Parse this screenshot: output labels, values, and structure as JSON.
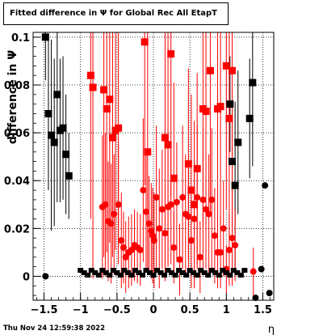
{
  "chart_data": {
    "type": "scatter",
    "title": "Fitted difference in  Ψ  for Global Rec All EtapT",
    "ylabel": "difference in  Ψ",
    "xlabel": "η",
    "xlim": [
      -1.65,
      1.65
    ],
    "ylim": [
      -0.01,
      0.102
    ],
    "x_ticks": [
      -1.5,
      -1,
      -0.5,
      0,
      0.5,
      1,
      1.5
    ],
    "x_tick_labels": [
      "−1.5",
      "−1",
      "−0.5",
      "0",
      "0.5",
      "1",
      "1.5"
    ],
    "y_ticks": [
      0,
      0.02,
      0.04,
      0.06,
      0.08,
      0.1
    ],
    "y_tick_labels": [
      "0",
      "0.02",
      "0.04",
      "0.06",
      "0.08",
      "0.1"
    ],
    "grid": true,
    "series": [
      {
        "color": "#000000",
        "marker": "square",
        "points": [
          {
            "x": -1.48,
            "y": 0.1,
            "err": 0.018
          },
          {
            "x": -1.44,
            "y": 0.068,
            "err": 0.032
          },
          {
            "x": -1.4,
            "y": 0.059,
            "err": 0.04
          },
          {
            "x": -1.36,
            "y": 0.056,
            "err": 0.035
          },
          {
            "x": -1.32,
            "y": 0.076,
            "err": 0.045
          },
          {
            "x": -1.28,
            "y": 0.061,
            "err": 0.03
          },
          {
            "x": -1.24,
            "y": 0.062,
            "err": 0.03
          },
          {
            "x": -1.2,
            "y": 0.051,
            "err": 0.025
          },
          {
            "x": -1.16,
            "y": 0.042,
            "err": 0.018
          },
          {
            "x": 1.05,
            "y": 0.072,
            "err": 0.02
          },
          {
            "x": 1.08,
            "y": 0.048,
            "err": 0.03
          },
          {
            "x": 1.12,
            "y": 0.038,
            "err": 0.035
          },
          {
            "x": 1.16,
            "y": 0.056,
            "err": 0.03
          },
          {
            "x": 1.32,
            "y": 0.066,
            "err": 0.025
          },
          {
            "x": 1.36,
            "y": 0.081,
            "err": 0.035
          }
        ]
      },
      {
        "color": "#000000",
        "marker": "circle",
        "points": [
          {
            "x": -1.48,
            "y": 0.0,
            "err": 0.0
          },
          {
            "x": 1.4,
            "y": -0.009,
            "err": 0.0
          },
          {
            "x": 1.48,
            "y": 0.003,
            "err": 0.0
          },
          {
            "x": 1.53,
            "y": 0.038,
            "err": 0.0
          },
          {
            "x": 1.59,
            "y": -0.007,
            "err": 0.0
          }
        ]
      },
      {
        "color": "#ff0000",
        "marker": "square",
        "points": [
          {
            "x": -0.86,
            "y": 0.084,
            "err": 0.06
          },
          {
            "x": -0.83,
            "y": 0.079,
            "err": 0.08
          },
          {
            "x": -0.68,
            "y": 0.078,
            "err": 0.07
          },
          {
            "x": -0.64,
            "y": 0.07,
            "err": 0.06
          },
          {
            "x": -0.6,
            "y": 0.074,
            "err": 0.06
          },
          {
            "x": -0.56,
            "y": 0.058,
            "err": 0.05
          },
          {
            "x": -0.52,
            "y": 0.061,
            "err": 0.05
          },
          {
            "x": -0.48,
            "y": 0.062,
            "err": 0.05
          },
          {
            "x": -0.12,
            "y": 0.098,
            "err": 0.06
          },
          {
            "x": -0.08,
            "y": 0.052,
            "err": 0.05
          },
          {
            "x": 0.16,
            "y": 0.058,
            "err": 0.06
          },
          {
            "x": 0.2,
            "y": 0.055,
            "err": 0.05
          },
          {
            "x": 0.24,
            "y": 0.093,
            "err": 0.06
          },
          {
            "x": 0.28,
            "y": 0.041,
            "err": 0.04
          },
          {
            "x": 0.48,
            "y": 0.047,
            "err": 0.04
          },
          {
            "x": 0.52,
            "y": 0.036,
            "err": 0.04
          },
          {
            "x": 0.56,
            "y": 0.03,
            "err": 0.035
          },
          {
            "x": 0.6,
            "y": 0.045,
            "err": 0.04
          },
          {
            "x": 0.68,
            "y": 0.07,
            "err": 0.05
          },
          {
            "x": 0.72,
            "y": 0.069,
            "err": 0.05
          },
          {
            "x": 0.78,
            "y": 0.086,
            "err": 0.06
          },
          {
            "x": 0.88,
            "y": 0.07,
            "err": 0.05
          },
          {
            "x": 0.92,
            "y": 0.071,
            "err": 0.05
          },
          {
            "x": 1.0,
            "y": 0.088,
            "err": 0.06
          },
          {
            "x": 1.04,
            "y": 0.066,
            "err": 0.05
          },
          {
            "x": 1.08,
            "y": 0.086,
            "err": 0.06
          }
        ]
      },
      {
        "color": "#ff0000",
        "marker": "circle",
        "points": [
          {
            "x": -0.7,
            "y": 0.029,
            "err": 0.03
          },
          {
            "x": -0.66,
            "y": 0.03,
            "err": 0.03
          },
          {
            "x": -0.62,
            "y": 0.023,
            "err": 0.025
          },
          {
            "x": -0.58,
            "y": 0.022,
            "err": 0.025
          },
          {
            "x": -0.54,
            "y": 0.026,
            "err": 0.025
          },
          {
            "x": -0.48,
            "y": 0.03,
            "err": 0.025
          },
          {
            "x": -0.44,
            "y": 0.015,
            "err": 0.02
          },
          {
            "x": -0.41,
            "y": 0.012,
            "err": 0.015
          },
          {
            "x": -0.38,
            "y": 0.008,
            "err": 0.015
          },
          {
            "x": -0.34,
            "y": 0.01,
            "err": 0.015
          },
          {
            "x": -0.3,
            "y": 0.011,
            "err": 0.015
          },
          {
            "x": -0.26,
            "y": 0.013,
            "err": 0.015
          },
          {
            "x": -0.22,
            "y": 0.012,
            "err": 0.015
          },
          {
            "x": -0.18,
            "y": 0.011,
            "err": 0.015
          },
          {
            "x": -0.14,
            "y": 0.036,
            "err": 0.03
          },
          {
            "x": -0.1,
            "y": 0.027,
            "err": 0.025
          },
          {
            "x": -0.06,
            "y": 0.022,
            "err": 0.02
          },
          {
            "x": -0.03,
            "y": 0.019,
            "err": 0.02
          },
          {
            "x": -0.01,
            "y": 0.017,
            "err": 0.02
          },
          {
            "x": 0.01,
            "y": 0.015,
            "err": 0.02
          },
          {
            "x": 0.04,
            "y": 0.033,
            "err": 0.03
          },
          {
            "x": 0.08,
            "y": 0.02,
            "err": 0.025
          },
          {
            "x": 0.12,
            "y": 0.028,
            "err": 0.025
          },
          {
            "x": 0.16,
            "y": 0.018,
            "err": 0.02
          },
          {
            "x": 0.2,
            "y": 0.029,
            "err": 0.025
          },
          {
            "x": 0.24,
            "y": 0.03,
            "err": 0.025
          },
          {
            "x": 0.28,
            "y": 0.012,
            "err": 0.015
          },
          {
            "x": 0.32,
            "y": 0.031,
            "err": 0.025
          },
          {
            "x": 0.36,
            "y": 0.007,
            "err": 0.015
          },
          {
            "x": 0.4,
            "y": 0.033,
            "err": 0.03
          },
          {
            "x": 0.44,
            "y": 0.026,
            "err": 0.025
          },
          {
            "x": 0.48,
            "y": 0.025,
            "err": 0.025
          },
          {
            "x": 0.52,
            "y": 0.015,
            "err": 0.02
          },
          {
            "x": 0.56,
            "y": 0.024,
            "err": 0.025
          },
          {
            "x": 0.6,
            "y": 0.033,
            "err": 0.03
          },
          {
            "x": 0.64,
            "y": 0.008,
            "err": 0.015
          },
          {
            "x": 0.68,
            "y": 0.032,
            "err": 0.03
          },
          {
            "x": 0.72,
            "y": 0.028,
            "err": 0.025
          },
          {
            "x": 0.76,
            "y": 0.026,
            "err": 0.025
          },
          {
            "x": 0.8,
            "y": 0.032,
            "err": 0.03
          },
          {
            "x": 0.84,
            "y": 0.017,
            "err": 0.02
          },
          {
            "x": 0.88,
            "y": 0.01,
            "err": 0.015
          },
          {
            "x": 0.92,
            "y": 0.01,
            "err": 0.015
          },
          {
            "x": 0.96,
            "y": 0.02,
            "err": 0.02
          },
          {
            "x": 1.0,
            "y": 0.003,
            "err": 0.01
          },
          {
            "x": 1.04,
            "y": 0.011,
            "err": 0.015
          },
          {
            "x": 1.08,
            "y": 0.016,
            "err": 0.02
          },
          {
            "x": 1.12,
            "y": 0.013,
            "err": 0.015
          },
          {
            "x": 1.37,
            "y": 0.002,
            "err": 0.01
          }
        ]
      },
      {
        "color": "#000000",
        "marker": "band",
        "points": [
          {
            "x": -1.0,
            "y": 0.0025,
            "err": 0.0008
          },
          {
            "x": -0.95,
            "y": 0.0015,
            "err": 0.0008
          },
          {
            "x": -0.9,
            "y": 0.0005,
            "err": 0.0008
          },
          {
            "x": -0.85,
            "y": 0.0025,
            "err": 0.0008
          },
          {
            "x": -0.8,
            "y": 0.0015,
            "err": 0.0008
          },
          {
            "x": -0.75,
            "y": 0.0005,
            "err": 0.0008
          },
          {
            "x": -0.7,
            "y": 0.0025,
            "err": 0.0008
          },
          {
            "x": -0.65,
            "y": 0.0015,
            "err": 0.0008
          },
          {
            "x": -0.6,
            "y": 0.0005,
            "err": 0.0008
          },
          {
            "x": -0.55,
            "y": 0.0025,
            "err": 0.0008
          },
          {
            "x": -0.5,
            "y": 0.0015,
            "err": 0.0008
          },
          {
            "x": -0.45,
            "y": 0.0005,
            "err": 0.0008
          },
          {
            "x": -0.4,
            "y": 0.0025,
            "err": 0.0008
          },
          {
            "x": -0.35,
            "y": 0.0015,
            "err": 0.0008
          },
          {
            "x": -0.3,
            "y": 0.0005,
            "err": 0.0008
          },
          {
            "x": -0.25,
            "y": 0.0025,
            "err": 0.0008
          },
          {
            "x": -0.2,
            "y": 0.0015,
            "err": 0.0008
          },
          {
            "x": -0.15,
            "y": 0.0005,
            "err": 0.0008
          },
          {
            "x": -0.1,
            "y": 0.0025,
            "err": 0.0008
          },
          {
            "x": -0.05,
            "y": 0.0015,
            "err": 0.0008
          },
          {
            "x": 0.0,
            "y": 0.0005,
            "err": 0.0008
          },
          {
            "x": 0.05,
            "y": 0.0025,
            "err": 0.0008
          },
          {
            "x": 0.1,
            "y": 0.0015,
            "err": 0.0008
          },
          {
            "x": 0.15,
            "y": 0.0005,
            "err": 0.0008
          },
          {
            "x": 0.2,
            "y": 0.0025,
            "err": 0.0008
          },
          {
            "x": 0.25,
            "y": 0.0015,
            "err": 0.0008
          },
          {
            "x": 0.3,
            "y": 0.0005,
            "err": 0.0008
          },
          {
            "x": 0.35,
            "y": 0.0025,
            "err": 0.0008
          },
          {
            "x": 0.4,
            "y": 0.0015,
            "err": 0.0008
          },
          {
            "x": 0.45,
            "y": 0.0005,
            "err": 0.0008
          },
          {
            "x": 0.5,
            "y": 0.0025,
            "err": 0.0008
          },
          {
            "x": 0.55,
            "y": 0.0015,
            "err": 0.0008
          },
          {
            "x": 0.6,
            "y": 0.0005,
            "err": 0.0008
          },
          {
            "x": 0.65,
            "y": 0.0025,
            "err": 0.0008
          },
          {
            "x": 0.7,
            "y": 0.0015,
            "err": 0.0008
          },
          {
            "x": 0.75,
            "y": 0.0005,
            "err": 0.0008
          },
          {
            "x": 0.8,
            "y": 0.0025,
            "err": 0.0008
          },
          {
            "x": 0.85,
            "y": 0.0015,
            "err": 0.0008
          },
          {
            "x": 0.9,
            "y": 0.0005,
            "err": 0.0008
          },
          {
            "x": 0.95,
            "y": 0.0025,
            "err": 0.0008
          },
          {
            "x": 1.0,
            "y": 0.0015,
            "err": 0.0008
          },
          {
            "x": 1.05,
            "y": 0.0005,
            "err": 0.0008
          },
          {
            "x": 1.1,
            "y": 0.0025,
            "err": 0.0008
          },
          {
            "x": 1.15,
            "y": 0.0015,
            "err": 0.0008
          },
          {
            "x": 1.2,
            "y": 0.0005,
            "err": 0.0008
          },
          {
            "x": 1.25,
            "y": 0.0025,
            "err": 0.0008
          }
        ]
      }
    ]
  },
  "footer": {
    "timestamp": "Thu Nov 24 12:59:38 2022"
  }
}
